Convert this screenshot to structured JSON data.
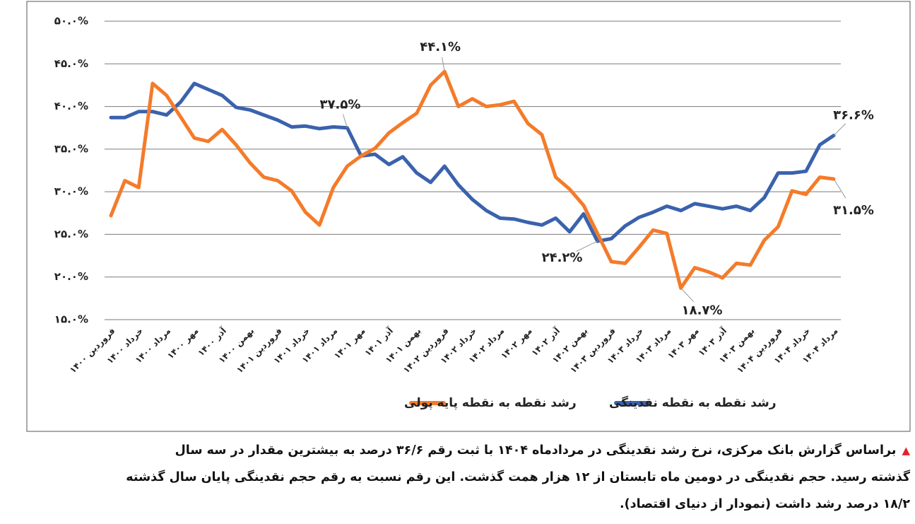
{
  "chart_data": {
    "type": "line",
    "categories": [
      "فروردین ۱۴۰۰",
      null,
      "خرداد ۱۴۰۰",
      null,
      "مرداد ۱۴۰۰",
      null,
      "مهر ۱۴۰۰",
      null,
      "آذر ۱۴۰۰",
      null,
      "بهمن ۱۴۰۰",
      null,
      "فروردین ۱۴۰۱",
      null,
      "خرداد ۱۴۰۱",
      null,
      "مرداد ۱۴۰۱",
      null,
      "مهر ۱۴۰۱",
      null,
      "آذر ۱۴۰۱",
      null,
      "بهمن ۱۴۰۱",
      null,
      "فروردین ۱۴۰۲",
      null,
      "خرداد ۱۴۰۲",
      null,
      "مرداد ۱۴۰۲",
      null,
      "مهر ۱۴۰۲",
      null,
      "آذر ۱۴۰۲",
      null,
      "بهمن ۱۴۰۲",
      null,
      "فروردین ۱۴۰۳",
      null,
      "خرداد ۱۴۰۳",
      null,
      "مرداد ۱۴۰۳",
      null,
      "مهر ۱۴۰۳",
      null,
      "آذر ۱۴۰۳",
      null,
      "بهمن ۱۴۰۳",
      null,
      "فروردین ۱۴۰۴",
      null,
      "خرداد ۱۴۰۴",
      null,
      "مرداد ۱۴۰۴"
    ],
    "series": [
      {
        "name": "رشد نقطه به نقطه نقدینگی",
        "color": "#3a62ad",
        "values": [
          38.7,
          38.7,
          39.4,
          39.4,
          39.0,
          40.5,
          42.7,
          42.0,
          41.3,
          39.9,
          39.6,
          39.0,
          38.4,
          37.6,
          37.7,
          37.4,
          37.6,
          37.5,
          34.2,
          34.4,
          33.2,
          34.1,
          32.2,
          31.1,
          33.0,
          30.8,
          29.1,
          27.8,
          26.9,
          26.8,
          26.4,
          26.1,
          26.9,
          25.3,
          27.4,
          24.2,
          24.5,
          26.0,
          27.0,
          27.6,
          28.3,
          27.8,
          28.6,
          28.3,
          28.0,
          28.3,
          27.8,
          29.3,
          32.2,
          32.2,
          32.4,
          35.5,
          36.6
        ],
        "value_labels": [
          null,
          null,
          null,
          null,
          null,
          null,
          null,
          null,
          null,
          null,
          null,
          null,
          null,
          null,
          null,
          null,
          null,
          "۳۷.۵%",
          null,
          null,
          null,
          null,
          null,
          null,
          null,
          null,
          null,
          null,
          null,
          null,
          null,
          null,
          null,
          null,
          null,
          "۲۴.۲%",
          null,
          null,
          null,
          null,
          null,
          null,
          null,
          null,
          null,
          null,
          null,
          null,
          null,
          null,
          null,
          null,
          "۳۶.۶%"
        ]
      },
      {
        "name": "رشد نقطه به نقطه پایه پولی",
        "color": "#f47b2a",
        "values": [
          27.2,
          31.3,
          30.5,
          42.7,
          41.3,
          38.8,
          36.3,
          35.9,
          37.3,
          35.5,
          33.4,
          31.7,
          31.3,
          30.1,
          27.6,
          26.1,
          30.5,
          33.0,
          34.2,
          35.1,
          36.9,
          38.1,
          39.2,
          42.5,
          44.1,
          40.0,
          40.9,
          40.0,
          40.2,
          40.6,
          38.0,
          36.7,
          31.7,
          30.3,
          28.4,
          25.1,
          21.8,
          21.6,
          23.5,
          25.5,
          25.1,
          18.7,
          21.1,
          20.6,
          19.9,
          21.6,
          21.4,
          24.3,
          25.9,
          30.1,
          29.7,
          31.7,
          31.5
        ],
        "value_labels": [
          null,
          null,
          null,
          null,
          null,
          null,
          null,
          null,
          null,
          null,
          null,
          null,
          null,
          null,
          null,
          null,
          null,
          null,
          null,
          null,
          null,
          null,
          null,
          null,
          "۴۴.۱%",
          null,
          null,
          null,
          null,
          null,
          null,
          null,
          null,
          null,
          null,
          null,
          null,
          null,
          null,
          null,
          null,
          "۱۸.۷%",
          null,
          null,
          null,
          null,
          null,
          null,
          null,
          null,
          null,
          null,
          "۳۱.۵%"
        ]
      }
    ],
    "ylim": [
      15,
      50
    ],
    "yticks": [
      {
        "value": 15,
        "label": "۱۵.۰%"
      },
      {
        "value": 20,
        "label": "۲۰.۰%"
      },
      {
        "value": 25,
        "label": "۲۵.۰%"
      },
      {
        "value": 30,
        "label": "۳۰.۰%"
      },
      {
        "value": 35,
        "label": "۳۵.۰%"
      },
      {
        "value": 40,
        "label": "۴۰.۰%"
      },
      {
        "value": 45,
        "label": "۴۵.۰%"
      },
      {
        "value": 50,
        "label": "۵۰.۰%"
      }
    ],
    "grid": true
  },
  "caption": [
    "براساس گزارش بانک مرکزی، نرخ رشد نقدینگی در مردادماه ۱۴۰۴ با ثبت رقم ۳۶/۶ درصد به بیشترین مقدار در سه سال",
    "گذشته رسید. حجم نقدینگی در دومین ماه تابستان از ۱۲ هزار همت گذشت. این رقم نسبت به رقم حجم نقدینگی پایان سال گذشته",
    "۱۸/۲ درصد رشد داشت (نمودار از دنیای اقتصاد)."
  ]
}
